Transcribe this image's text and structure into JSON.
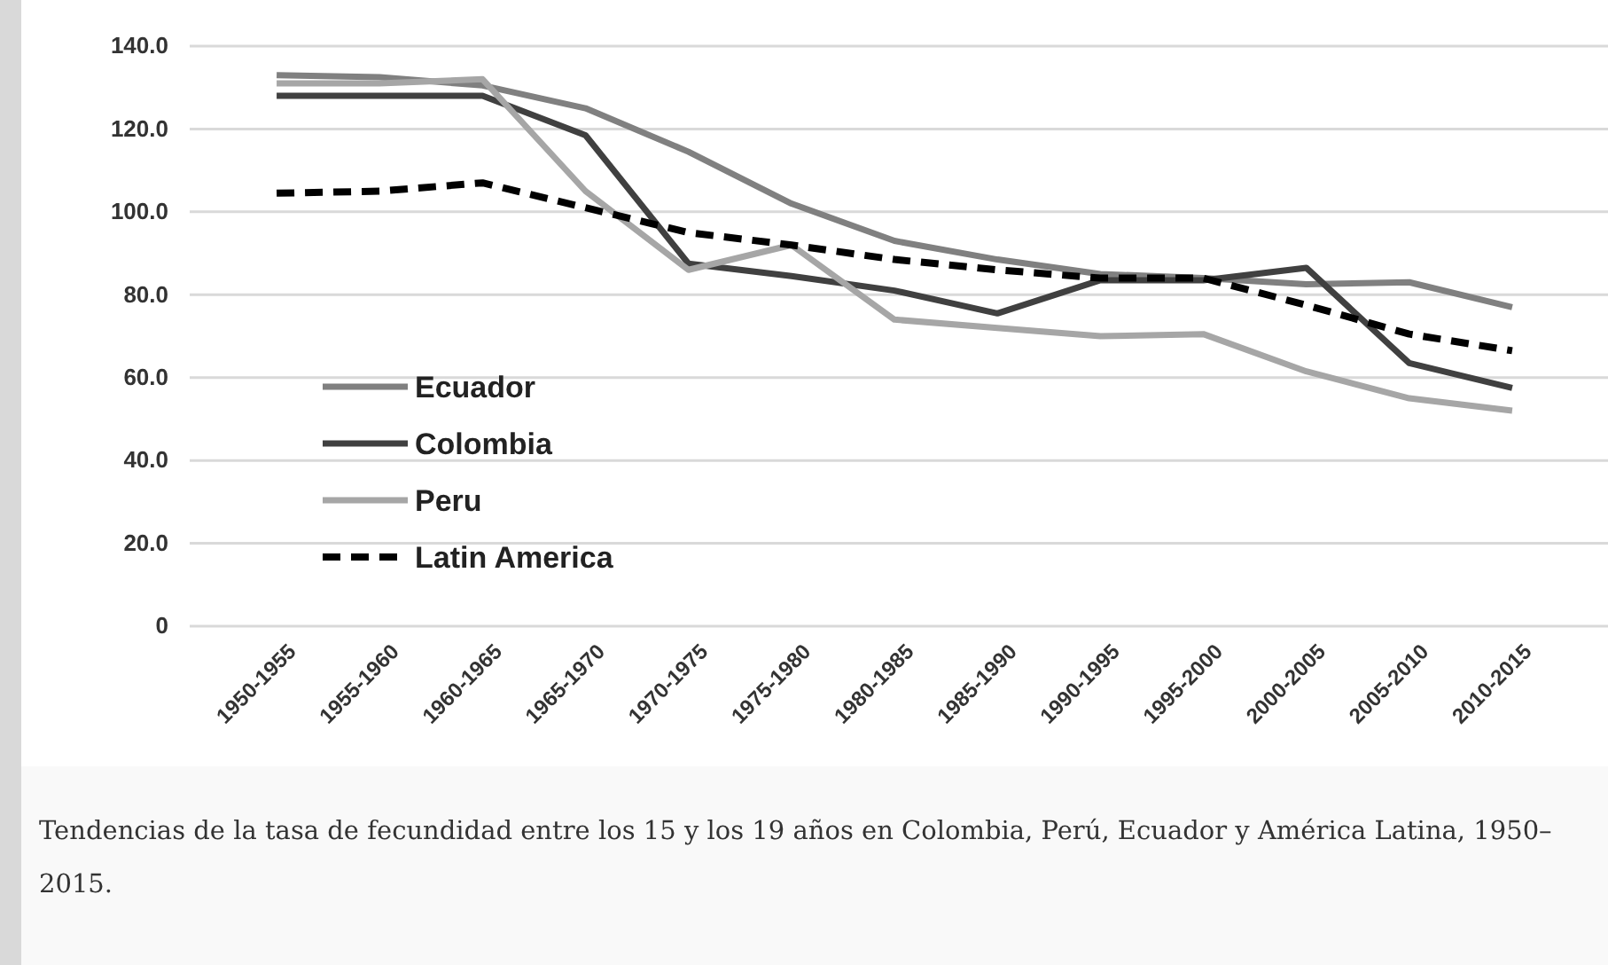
{
  "chart_data": {
    "type": "line",
    "categories": [
      "1950-1955",
      "1955-1960",
      "1960-1965",
      "1965-1970",
      "1970-1975",
      "1975-1980",
      "1980-1985",
      "1985-1990",
      "1990-1995",
      "1995-2000",
      "2000-2005",
      "2005-2010",
      "2010-2015"
    ],
    "series": [
      {
        "name": "Ecuador",
        "color": "#808080",
        "values": [
          133,
          132.5,
          130.5,
          125,
          114.5,
          102,
          93,
          88.5,
          85,
          84,
          82.5,
          83,
          77
        ]
      },
      {
        "name": "Colombia",
        "color": "#404040",
        "values": [
          128,
          128,
          128,
          118.5,
          87.5,
          84.5,
          81,
          75.5,
          83.5,
          83.5,
          86.5,
          63.5,
          57.5
        ]
      },
      {
        "name": "Peru",
        "color": "#a6a6a6",
        "values": [
          131,
          131,
          132,
          105,
          86,
          92,
          74,
          72,
          70,
          70.5,
          61.5,
          55,
          52
        ]
      },
      {
        "name": "Latin America",
        "color": "#000000",
        "line_style": "dashed",
        "values": [
          104.5,
          105,
          107,
          101,
          95,
          92,
          88.5,
          86,
          84,
          84,
          77.5,
          70.5,
          66.5
        ]
      }
    ],
    "ylim": [
      0,
      140
    ],
    "yticks": [
      0,
      {
        "value": 20,
        "label": "20.0"
      },
      {
        "value": 40,
        "label": "40.0"
      },
      {
        "value": 60,
        "label": "60.0"
      },
      {
        "value": 80,
        "label": "80.0"
      },
      {
        "value": 100,
        "label": "100.0"
      },
      {
        "value": 120,
        "label": "120.0"
      },
      {
        "value": 140,
        "label": "140.0"
      }
    ],
    "grid": "y",
    "legend": "bottom left",
    "marker": "none",
    "line_style": "solid",
    "annotations": [
      "Tendencias de la tasa de fecundidad entre los 15 y los 19 años en Colombia, Perú, Ecuador y América Latina, 1950–2015."
    ]
  }
}
